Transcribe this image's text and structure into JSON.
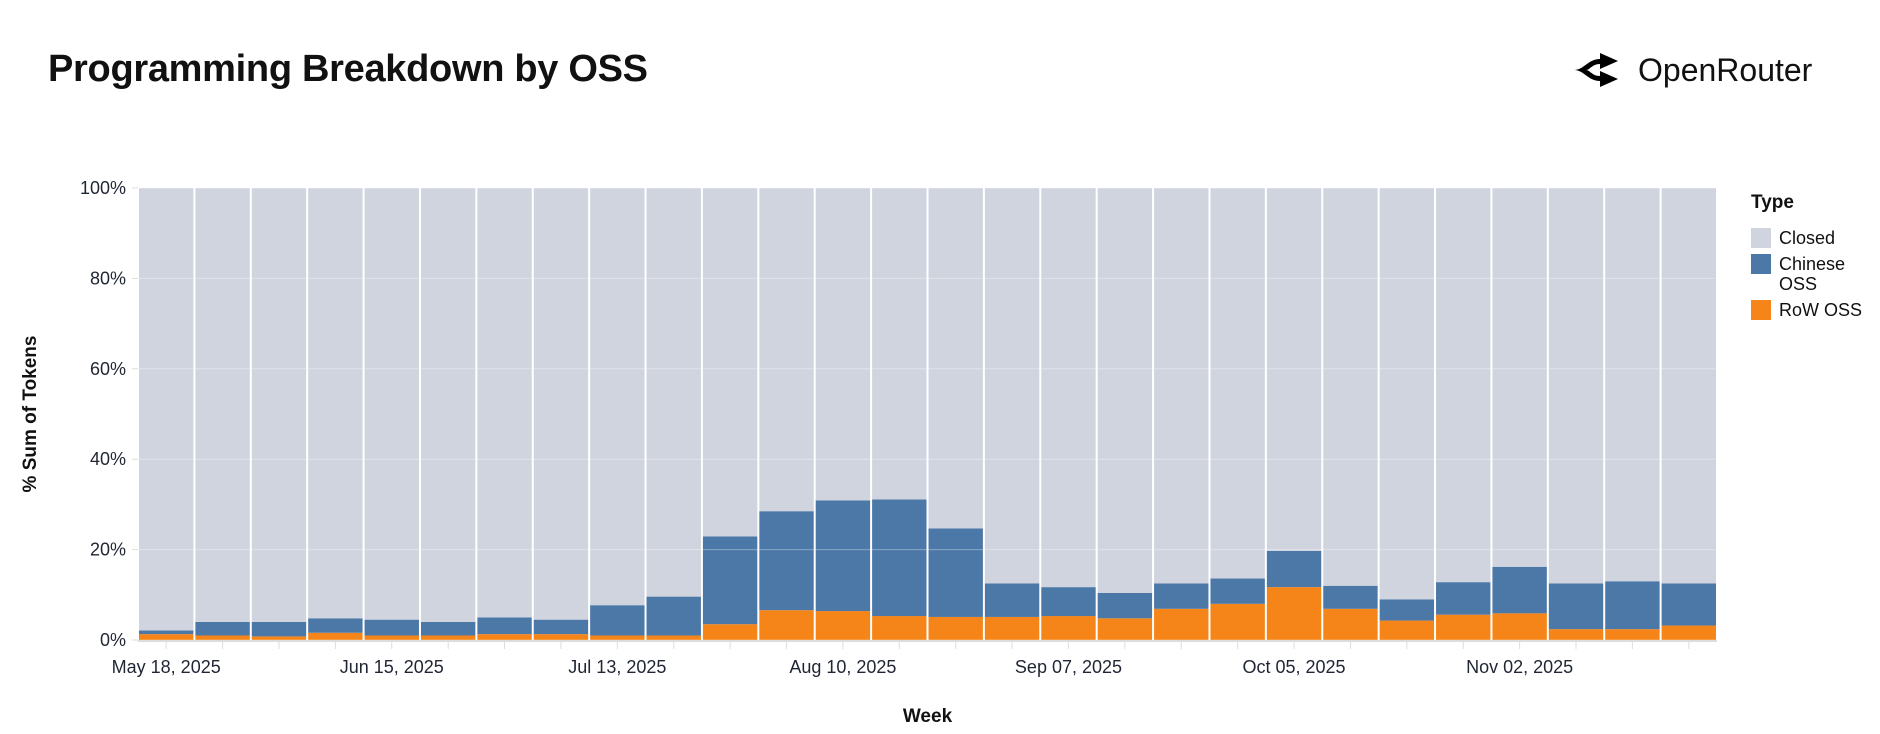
{
  "header": {
    "title": "Programming Breakdown by OSS",
    "logo_text": "OpenRouter",
    "logo_icon": "openrouter-arrows-icon"
  },
  "chart_data": {
    "type": "bar",
    "stacked": true,
    "normalized": true,
    "title": "Programming Breakdown by OSS",
    "xlabel": "Week",
    "ylabel": "% Sum of Tokens",
    "ylim": [
      0,
      100
    ],
    "y_ticks": [
      "0%",
      "20%",
      "40%",
      "60%",
      "80%",
      "100%"
    ],
    "y_tick_values": [
      0,
      20,
      40,
      60,
      80,
      100
    ],
    "x_tick_labels": [
      "May 18, 2025",
      "Jun 15, 2025",
      "Jul 13, 2025",
      "Aug 10, 2025",
      "Sep 07, 2025",
      "Oct 05, 2025",
      "Nov 02, 2025"
    ],
    "categories": [
      "2025-05-18",
      "2025-05-25",
      "2025-06-01",
      "2025-06-08",
      "2025-06-15",
      "2025-06-22",
      "2025-06-29",
      "2025-07-06",
      "2025-07-13",
      "2025-07-20",
      "2025-07-27",
      "2025-08-03",
      "2025-08-10",
      "2025-08-17",
      "2025-08-24",
      "2025-08-31",
      "2025-09-07",
      "2025-09-14",
      "2025-09-21",
      "2025-09-28",
      "2025-10-05",
      "2025-10-12",
      "2025-10-19",
      "2025-10-26",
      "2025-11-02",
      "2025-11-09",
      "2025-11-16",
      "2025-11-23"
    ],
    "grid": true,
    "legend": {
      "title": "Type",
      "placement": "right"
    },
    "series": [
      {
        "name": "RoW OSS",
        "color": "#f58518",
        "values": [
          1.3,
          1.0,
          0.8,
          1.6,
          1.0,
          1.0,
          1.3,
          1.3,
          1.0,
          1.0,
          3.5,
          6.6,
          6.4,
          5.3,
          5.1,
          5.1,
          5.3,
          4.8,
          6.9,
          8.0,
          11.7,
          6.9,
          4.3,
          5.6,
          5.9,
          2.4,
          2.4,
          3.2
        ]
      },
      {
        "name": "Chinese OSS",
        "color": "#4c78a8",
        "values": [
          0.8,
          3.0,
          3.2,
          3.2,
          3.5,
          3.0,
          3.7,
          3.2,
          6.7,
          8.6,
          19.4,
          21.9,
          24.5,
          25.8,
          19.6,
          7.4,
          6.4,
          5.6,
          5.6,
          5.6,
          8.0,
          5.1,
          4.7,
          7.2,
          10.3,
          10.1,
          10.6,
          9.3
        ]
      },
      {
        "name": "Closed",
        "color": "#cfd4df",
        "values": [
          97.9,
          96.0,
          96.0,
          95.2,
          95.5,
          96.0,
          95.0,
          95.5,
          92.3,
          90.4,
          77.1,
          71.5,
          69.1,
          68.9,
          75.3,
          87.5,
          88.3,
          89.6,
          87.5,
          86.4,
          80.3,
          88.0,
          91.0,
          87.2,
          83.8,
          87.5,
          87.0,
          87.5
        ]
      }
    ]
  }
}
